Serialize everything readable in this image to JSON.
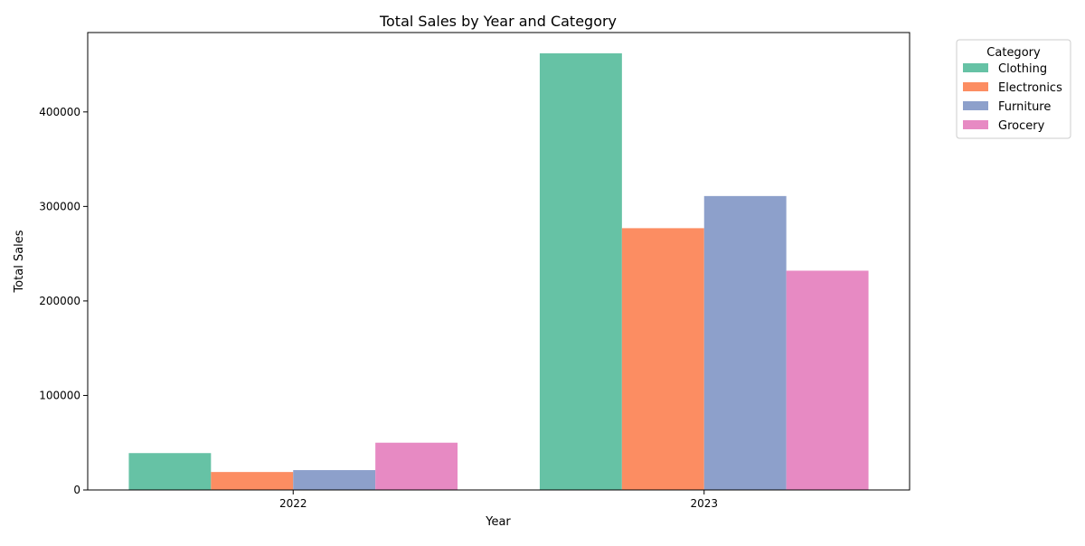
{
  "chart_data": {
    "type": "bar",
    "title": "Total Sales by Year and Category",
    "xlabel": "Year",
    "ylabel": "Total Sales",
    "categories": [
      "2022",
      "2023"
    ],
    "ylim": [
      0,
      484000
    ],
    "yticks": [
      0,
      100000,
      200000,
      300000,
      400000
    ],
    "grid": false,
    "legend": {
      "title": "Category",
      "placement": "outside-top-right"
    },
    "series": [
      {
        "name": "Clothing",
        "color": "#66c2a5",
        "values": [
          39000,
          462000
        ]
      },
      {
        "name": "Electronics",
        "color": "#fc8d62",
        "values": [
          19000,
          277000
        ]
      },
      {
        "name": "Furniture",
        "color": "#8da0cb",
        "values": [
          21000,
          311000
        ]
      },
      {
        "name": "Grocery",
        "color": "#e78ac3",
        "values": [
          50000,
          232000
        ]
      }
    ]
  }
}
